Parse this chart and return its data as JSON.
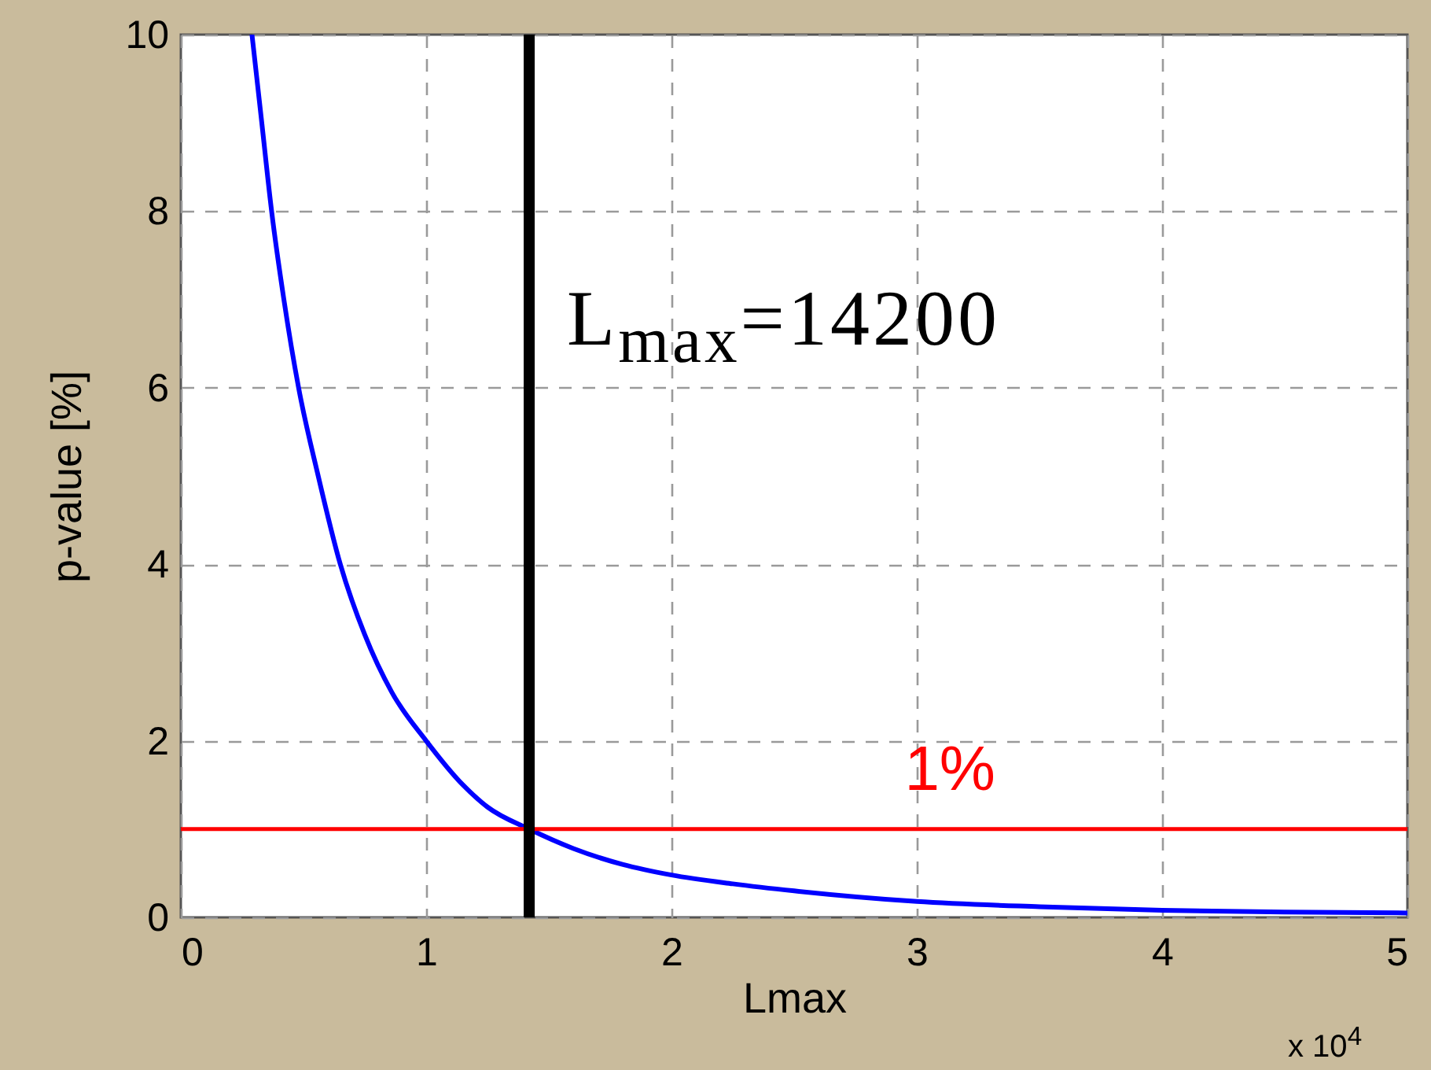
{
  "chart_data": {
    "type": "line",
    "xlabel": "Lmax",
    "ylabel": "p-value [%]",
    "x": [
      0.29,
      0.33,
      0.37,
      0.42,
      0.48,
      0.56,
      0.65,
      0.75,
      0.86,
      1.0,
      1.15,
      1.25,
      1.42,
      1.6,
      1.8,
      2.0,
      2.25,
      2.5,
      3.0,
      3.5,
      4.0,
      4.5,
      5.0
    ],
    "series": [
      {
        "color": "#0000ff",
        "values": [
          10,
          9,
          8,
          7,
          6,
          5,
          4,
          3.2,
          2.55,
          2,
          1.5,
          1.25,
          1,
          0.78,
          0.6,
          0.48,
          0.38,
          0.3,
          0.18,
          0.12,
          0.08,
          0.06,
          0.05
        ]
      }
    ],
    "xlim": [
      0,
      5
    ],
    "xticks": [
      0,
      1,
      2,
      3,
      4,
      5
    ],
    "ylim": [
      0,
      10
    ],
    "yticks": [
      0,
      2,
      4,
      6,
      8,
      10
    ],
    "ref_lines": [
      {
        "axis": "x",
        "value": 1.42,
        "color": "#000000"
      },
      {
        "axis": "y",
        "value": 1,
        "label": "1%",
        "color": "#ff0000"
      }
    ],
    "annotations": [
      "L$_{max}$=14200",
      "x 10$^{4}$"
    ],
    "grid": true,
    "marker": "none",
    "line_style": "solid"
  }
}
